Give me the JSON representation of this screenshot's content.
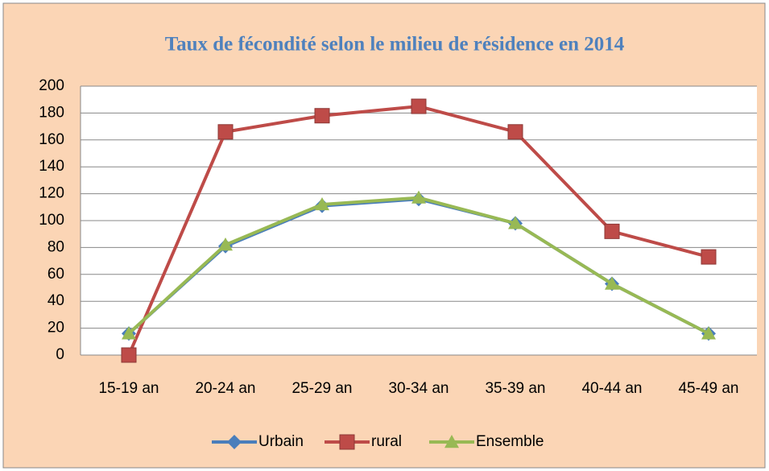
{
  "chart_data": {
    "type": "line",
    "title": "Taux de fécondité selon le milieu de résidence en 2014",
    "categories": [
      "15-19 an",
      "20-24 an",
      "25-29 an",
      "30-34 an",
      "35-39 an",
      "40-44 an",
      "45-49 an"
    ],
    "series": [
      {
        "name": "Urbain",
        "color": "#4a7ebb",
        "marker": "diamond",
        "values": [
          16,
          81,
          111,
          116,
          98,
          53,
          16
        ]
      },
      {
        "name": "rural",
        "color": "#be4b48",
        "marker": "square",
        "values": [
          0,
          166,
          178,
          185,
          166,
          92,
          73
        ]
      },
      {
        "name": "Ensemble",
        "color": "#98b954",
        "marker": "triangle",
        "values": [
          16,
          82,
          112,
          117,
          98,
          53,
          16
        ]
      }
    ],
    "ylim": [
      0,
      200
    ],
    "yticks": [
      0,
      20,
      40,
      60,
      80,
      100,
      120,
      140,
      160,
      180,
      200
    ],
    "grid": true,
    "legend": "bottom"
  }
}
